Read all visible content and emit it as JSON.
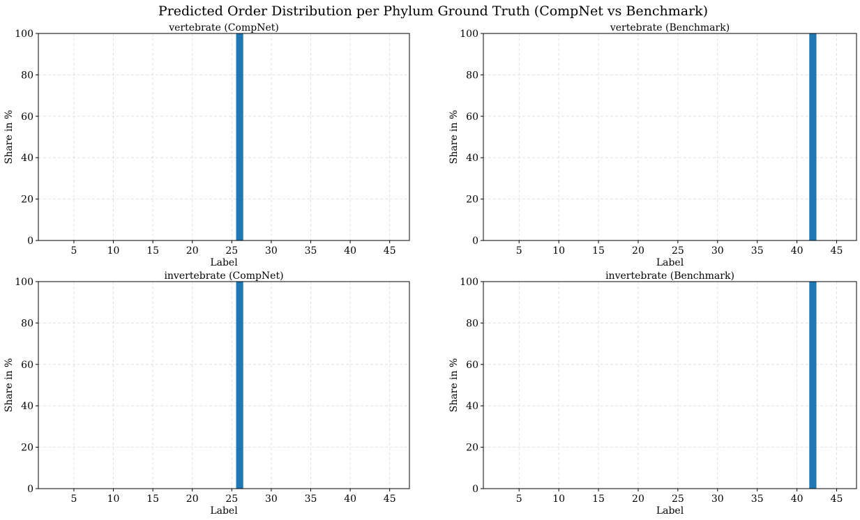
{
  "figure": {
    "title": "Predicted Order Distribution per Phylum Ground Truth (CompNet vs Benchmark)"
  },
  "chart_data": [
    {
      "type": "bar",
      "title": "vertebrate (CompNet)",
      "xlabel": "Label",
      "ylabel": "Share in %",
      "xlim": [
        0.5,
        47.5
      ],
      "ylim": [
        0,
        100
      ],
      "xticks": [
        5,
        10,
        15,
        20,
        25,
        30,
        35,
        40,
        45
      ],
      "yticks": [
        0,
        20,
        40,
        60,
        80,
        100
      ],
      "grid": true,
      "bar_color": "#1f77b4",
      "x": [
        26
      ],
      "values": [
        100
      ]
    },
    {
      "type": "bar",
      "title": "vertebrate (Benchmark)",
      "xlabel": "Label",
      "ylabel": "Share in %",
      "xlim": [
        0.5,
        47.5
      ],
      "ylim": [
        0,
        100
      ],
      "xticks": [
        5,
        10,
        15,
        20,
        25,
        30,
        35,
        40,
        45
      ],
      "yticks": [
        0,
        20,
        40,
        60,
        80,
        100
      ],
      "grid": true,
      "bar_color": "#1f77b4",
      "x": [
        42
      ],
      "values": [
        100
      ]
    },
    {
      "type": "bar",
      "title": "invertebrate (CompNet)",
      "xlabel": "Label",
      "ylabel": "Share in %",
      "xlim": [
        0.5,
        47.5
      ],
      "ylim": [
        0,
        100
      ],
      "xticks": [
        5,
        10,
        15,
        20,
        25,
        30,
        35,
        40,
        45
      ],
      "yticks": [
        0,
        20,
        40,
        60,
        80,
        100
      ],
      "grid": true,
      "bar_color": "#1f77b4",
      "x": [
        26
      ],
      "values": [
        100
      ]
    },
    {
      "type": "bar",
      "title": "invertebrate (Benchmark)",
      "xlabel": "Label",
      "ylabel": "Share in %",
      "xlim": [
        0.5,
        47.5
      ],
      "ylim": [
        0,
        100
      ],
      "xticks": [
        5,
        10,
        15,
        20,
        25,
        30,
        35,
        40,
        45
      ],
      "yticks": [
        0,
        20,
        40,
        60,
        80,
        100
      ],
      "grid": true,
      "bar_color": "#1f77b4",
      "x": [
        42
      ],
      "values": [
        100
      ]
    }
  ]
}
